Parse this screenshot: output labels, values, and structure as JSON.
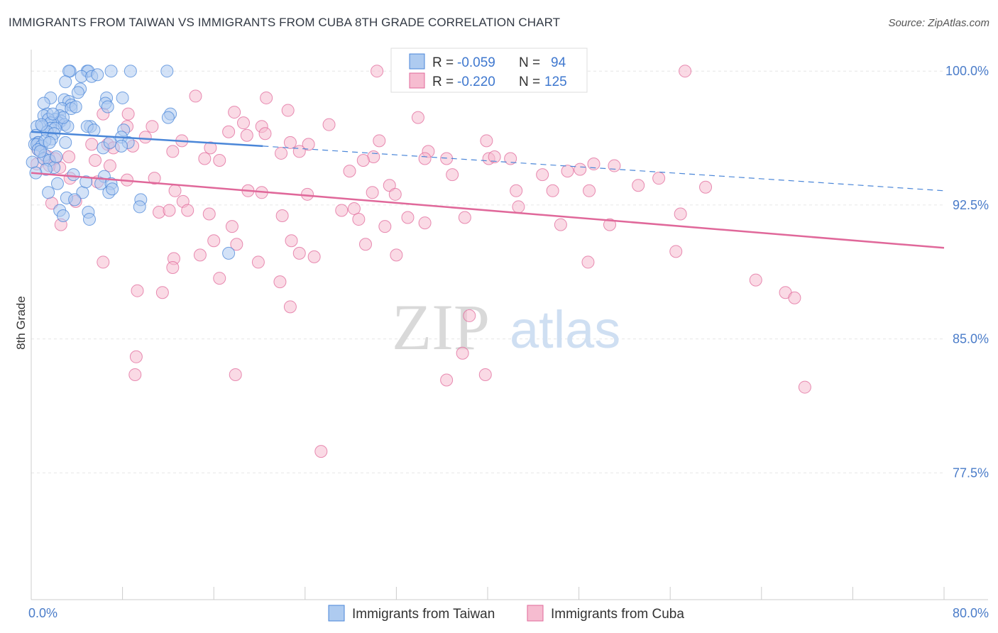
{
  "title": "IMMIGRANTS FROM TAIWAN VS IMMIGRANTS FROM CUBA 8TH GRADE CORRELATION CHART",
  "source": "Source: ZipAtlas.com",
  "watermark": {
    "zip": "ZIP",
    "atlas": "atlas"
  },
  "colors": {
    "taiwan": "#4a86d8",
    "taiwan_fill": "#aecbf0",
    "cuba": "#e0689a",
    "cuba_fill": "#f6bcd0",
    "tick": "#4a7cc9",
    "grid": "#e6e6e6"
  },
  "chart_data": {
    "type": "scatter",
    "xlabel": "",
    "ylabel": "8th Grade",
    "xlim": [
      0,
      80
    ],
    "ylim": [
      70.4,
      101.2
    ],
    "x_tick_labels": [
      {
        "value": 0,
        "label": "0.0%"
      },
      {
        "value": 80,
        "label": "80.0%"
      }
    ],
    "y_tick_labels": [
      {
        "value": 100.0,
        "label": "100.0%"
      },
      {
        "value": 92.5,
        "label": "92.5%"
      },
      {
        "value": 85.0,
        "label": "85.0%"
      },
      {
        "value": 77.5,
        "label": "77.5%"
      }
    ],
    "legend": {
      "position": "top-center",
      "rows": [
        {
          "r_label": "R =",
          "r_value": "-0.059",
          "n_label": "N =",
          "n_value": "94"
        },
        {
          "r_label": "R =",
          "r_value": "-0.220",
          "n_label": "N =",
          "n_value": "125"
        }
      ]
    },
    "bottom_legend": [
      "Immigrants from Taiwan",
      "Immigrants from Cuba"
    ],
    "series": [
      {
        "name": "Immigrants from Taiwan",
        "r": -0.059,
        "n": 94,
        "trend": {
          "solid": [
            [
              0,
              96.6
            ],
            [
              20.3,
              95.8
            ]
          ],
          "dashed": [
            [
              20.3,
              95.8
            ],
            [
              80,
              93.3
            ]
          ]
        },
        "points": [
          [
            3.4,
            100
          ],
          [
            3.3,
            100
          ],
          [
            4.9,
            100
          ],
          [
            5.0,
            100
          ],
          [
            7.0,
            100
          ],
          [
            8.7,
            100
          ],
          [
            11.9,
            100
          ],
          [
            4.4,
            99.7
          ],
          [
            5.3,
            99.7
          ],
          [
            3.0,
            99.4
          ],
          [
            4.3,
            99.0
          ],
          [
            4.1,
            98.8
          ],
          [
            6.6,
            98.5
          ],
          [
            1.7,
            98.5
          ],
          [
            2.9,
            98.4
          ],
          [
            3.3,
            98.3
          ],
          [
            6.5,
            98.2
          ],
          [
            1.1,
            98.2
          ],
          [
            3.5,
            98.1
          ],
          [
            6.7,
            98.0
          ],
          [
            2.7,
            97.9
          ],
          [
            3.5,
            97.9
          ],
          [
            1.4,
            97.6
          ],
          [
            12.2,
            97.6
          ],
          [
            2.5,
            97.5
          ],
          [
            1.1,
            97.5
          ],
          [
            12.0,
            97.4
          ],
          [
            2.1,
            97.3
          ],
          [
            1.5,
            97.3
          ],
          [
            2.6,
            97.2
          ],
          [
            2.4,
            97.1
          ],
          [
            1.7,
            97.1
          ],
          [
            2.9,
            97.0
          ],
          [
            1.0,
            96.9
          ],
          [
            3.2,
            96.9
          ],
          [
            5.2,
            96.9
          ],
          [
            1.7,
            96.8
          ],
          [
            0.5,
            96.9
          ],
          [
            4.9,
            96.9
          ],
          [
            2.1,
            96.8
          ],
          [
            5.5,
            96.7
          ],
          [
            8.1,
            96.7
          ],
          [
            1.4,
            96.6
          ],
          [
            2.0,
            96.5
          ],
          [
            0.4,
            96.4
          ],
          [
            7.9,
            96.3
          ],
          [
            1.8,
            96.2
          ],
          [
            0.6,
            96.0
          ],
          [
            0.6,
            96.0
          ],
          [
            3.0,
            96.0
          ],
          [
            8.5,
            96.0
          ],
          [
            0.3,
            95.9
          ],
          [
            0.5,
            95.9
          ],
          [
            0.9,
            95.8
          ],
          [
            6.3,
            95.7
          ],
          [
            7.9,
            95.8
          ],
          [
            0.6,
            95.6
          ],
          [
            1.2,
            95.3
          ],
          [
            1.1,
            95.1
          ],
          [
            1.6,
            95.0
          ],
          [
            0.1,
            94.9
          ],
          [
            2.0,
            94.6
          ],
          [
            1.3,
            94.5
          ],
          [
            0.4,
            94.3
          ],
          [
            3.7,
            94.2
          ],
          [
            6.4,
            94.1
          ],
          [
            2.3,
            93.7
          ],
          [
            6.1,
            93.7
          ],
          [
            7.0,
            93.7
          ],
          [
            1.5,
            93.2
          ],
          [
            4.5,
            93.2
          ],
          [
            6.8,
            93.2
          ],
          [
            3.1,
            92.9
          ],
          [
            3.8,
            92.8
          ],
          [
            9.6,
            92.8
          ],
          [
            9.5,
            92.4
          ],
          [
            2.5,
            92.2
          ],
          [
            5.0,
            92.1
          ],
          [
            2.8,
            91.9
          ],
          [
            5.1,
            91.7
          ],
          [
            17.3,
            89.8
          ],
          [
            1.2,
            96.1
          ],
          [
            0.9,
            97.0
          ],
          [
            2.8,
            97.4
          ],
          [
            5.8,
            99.8
          ],
          [
            8.0,
            98.5
          ],
          [
            3.9,
            98.0
          ],
          [
            1.9,
            97.6
          ],
          [
            6.9,
            96.0
          ],
          [
            0.8,
            95.5
          ],
          [
            4.8,
            93.8
          ],
          [
            7.1,
            93.4
          ],
          [
            2.2,
            95.2
          ],
          [
            1.6,
            96.0
          ]
        ]
      },
      {
        "name": "Immigrants from Cuba",
        "r": -0.22,
        "n": 125,
        "trend": {
          "solid": [
            [
              0,
              94.3
            ],
            [
              80,
              90.1
            ]
          ]
        },
        "points": [
          [
            30.3,
            100
          ],
          [
            57.3,
            100
          ],
          [
            14.4,
            98.6
          ],
          [
            20.6,
            98.5
          ],
          [
            22.5,
            97.8
          ],
          [
            17.8,
            97.7
          ],
          [
            8.5,
            97.6
          ],
          [
            6.3,
            97.6
          ],
          [
            33.9,
            97.4
          ],
          [
            18.6,
            97.1
          ],
          [
            26.1,
            97.0
          ],
          [
            20.2,
            96.9
          ],
          [
            8.4,
            96.9
          ],
          [
            10.6,
            96.9
          ],
          [
            17.3,
            96.6
          ],
          [
            20.5,
            96.5
          ],
          [
            10.0,
            96.3
          ],
          [
            18.9,
            96.4
          ],
          [
            30.5,
            96.1
          ],
          [
            13.2,
            96.1
          ],
          [
            22.7,
            96.0
          ],
          [
            39.9,
            96.1
          ],
          [
            24.3,
            95.9
          ],
          [
            5.3,
            95.9
          ],
          [
            6.7,
            95.9
          ],
          [
            0.6,
            95.6
          ],
          [
            15.7,
            95.7
          ],
          [
            8.9,
            95.8
          ],
          [
            12.4,
            95.5
          ],
          [
            7.2,
            95.7
          ],
          [
            23.5,
            95.5
          ],
          [
            21.9,
            95.4
          ],
          [
            34.8,
            95.5
          ],
          [
            30.0,
            95.2
          ],
          [
            29.1,
            95.0
          ],
          [
            15.2,
            95.1
          ],
          [
            40.1,
            95.1
          ],
          [
            36.4,
            95.1
          ],
          [
            40.6,
            95.2
          ],
          [
            42.0,
            95.1
          ],
          [
            16.5,
            95.0
          ],
          [
            1.5,
            95.2
          ],
          [
            2.1,
            95.1
          ],
          [
            5.6,
            95.0
          ],
          [
            34.5,
            95.1
          ],
          [
            3.3,
            95.2
          ],
          [
            6.9,
            94.7
          ],
          [
            0.5,
            94.8
          ],
          [
            1.6,
            94.7
          ],
          [
            2.5,
            94.6
          ],
          [
            27.9,
            94.4
          ],
          [
            36.9,
            94.2
          ],
          [
            47.0,
            94.4
          ],
          [
            44.8,
            94.2
          ],
          [
            48.1,
            94.5
          ],
          [
            49.3,
            94.8
          ],
          [
            51.1,
            94.7
          ],
          [
            55.0,
            94.0
          ],
          [
            3.4,
            94.0
          ],
          [
            10.8,
            94.0
          ],
          [
            8.4,
            93.9
          ],
          [
            5.8,
            93.8
          ],
          [
            29.9,
            93.2
          ],
          [
            31.4,
            93.6
          ],
          [
            53.2,
            93.6
          ],
          [
            42.5,
            93.3
          ],
          [
            45.7,
            93.3
          ],
          [
            48.9,
            93.3
          ],
          [
            59.1,
            93.5
          ],
          [
            31.9,
            93.1
          ],
          [
            19.0,
            93.3
          ],
          [
            20.2,
            93.2
          ],
          [
            12.6,
            93.3
          ],
          [
            24.2,
            93.1
          ],
          [
            38.0,
            91.8
          ],
          [
            13.3,
            92.7
          ],
          [
            3.9,
            92.7
          ],
          [
            1.8,
            92.6
          ],
          [
            13.7,
            92.2
          ],
          [
            11.2,
            92.1
          ],
          [
            12.1,
            92.2
          ],
          [
            27.2,
            92.2
          ],
          [
            28.3,
            92.3
          ],
          [
            22.0,
            91.9
          ],
          [
            28.7,
            91.7
          ],
          [
            33.0,
            91.8
          ],
          [
            42.7,
            92.4
          ],
          [
            46.4,
            91.4
          ],
          [
            56.9,
            92.0
          ],
          [
            15.6,
            92.0
          ],
          [
            34.5,
            91.5
          ],
          [
            2.6,
            91.4
          ],
          [
            17.6,
            91.3
          ],
          [
            50.7,
            91.4
          ],
          [
            31.0,
            91.3
          ],
          [
            16.0,
            90.5
          ],
          [
            18.0,
            90.3
          ],
          [
            22.8,
            90.5
          ],
          [
            29.3,
            90.3
          ],
          [
            14.8,
            89.7
          ],
          [
            12.5,
            89.5
          ],
          [
            23.5,
            89.8
          ],
          [
            24.8,
            89.6
          ],
          [
            32.0,
            89.7
          ],
          [
            6.3,
            89.3
          ],
          [
            12.4,
            89.0
          ],
          [
            19.9,
            89.3
          ],
          [
            48.8,
            89.3
          ],
          [
            56.5,
            89.9
          ],
          [
            16.5,
            88.4
          ],
          [
            21.8,
            88.2
          ],
          [
            9.3,
            87.7
          ],
          [
            11.5,
            87.6
          ],
          [
            63.5,
            88.3
          ],
          [
            66.1,
            87.6
          ],
          [
            66.9,
            87.3
          ],
          [
            22.7,
            86.8
          ],
          [
            38.4,
            86.3
          ],
          [
            9.2,
            84.0
          ],
          [
            37.8,
            84.2
          ],
          [
            9.1,
            83.0
          ],
          [
            17.9,
            83.0
          ],
          [
            36.4,
            82.7
          ],
          [
            39.8,
            83.0
          ],
          [
            67.8,
            82.3
          ],
          [
            25.4,
            78.7
          ]
        ]
      }
    ]
  }
}
